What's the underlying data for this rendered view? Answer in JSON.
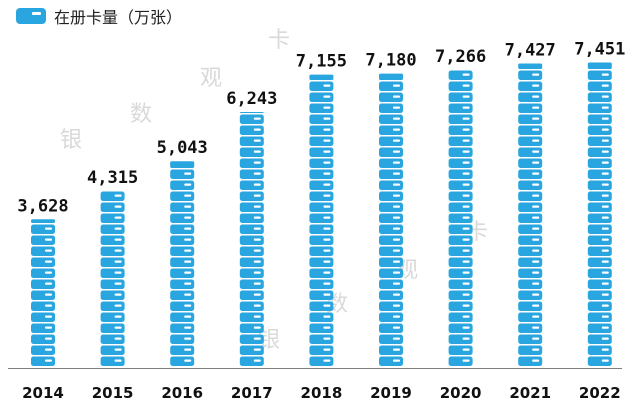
{
  "legend": {
    "label": "在册卡量（万张）"
  },
  "watermark": [
    "银",
    "数",
    "观",
    "卡"
  ],
  "colors": {
    "bar": "#29a6e0",
    "bar_stripe": "#ffffff",
    "axis": "#7f7f7f"
  },
  "chart_data": {
    "type": "bar",
    "categories": [
      "2014",
      "2015",
      "2016",
      "2017",
      "2018",
      "2019",
      "2020",
      "2021",
      "2022"
    ],
    "series": [
      {
        "name": "在册卡量（万张）",
        "values": [
          3628,
          4315,
          5043,
          6243,
          7155,
          7180,
          7266,
          7427,
          7451
        ]
      }
    ],
    "data_labels": [
      "3,628",
      "4,315",
      "5,043",
      "6,243",
      "7,155",
      "7,180",
      "7,266",
      "7,427",
      "7,451"
    ],
    "xlabel": "",
    "ylabel": "",
    "ylim": [
      0,
      8000
    ],
    "grid": false,
    "legend_position": "top-left"
  }
}
